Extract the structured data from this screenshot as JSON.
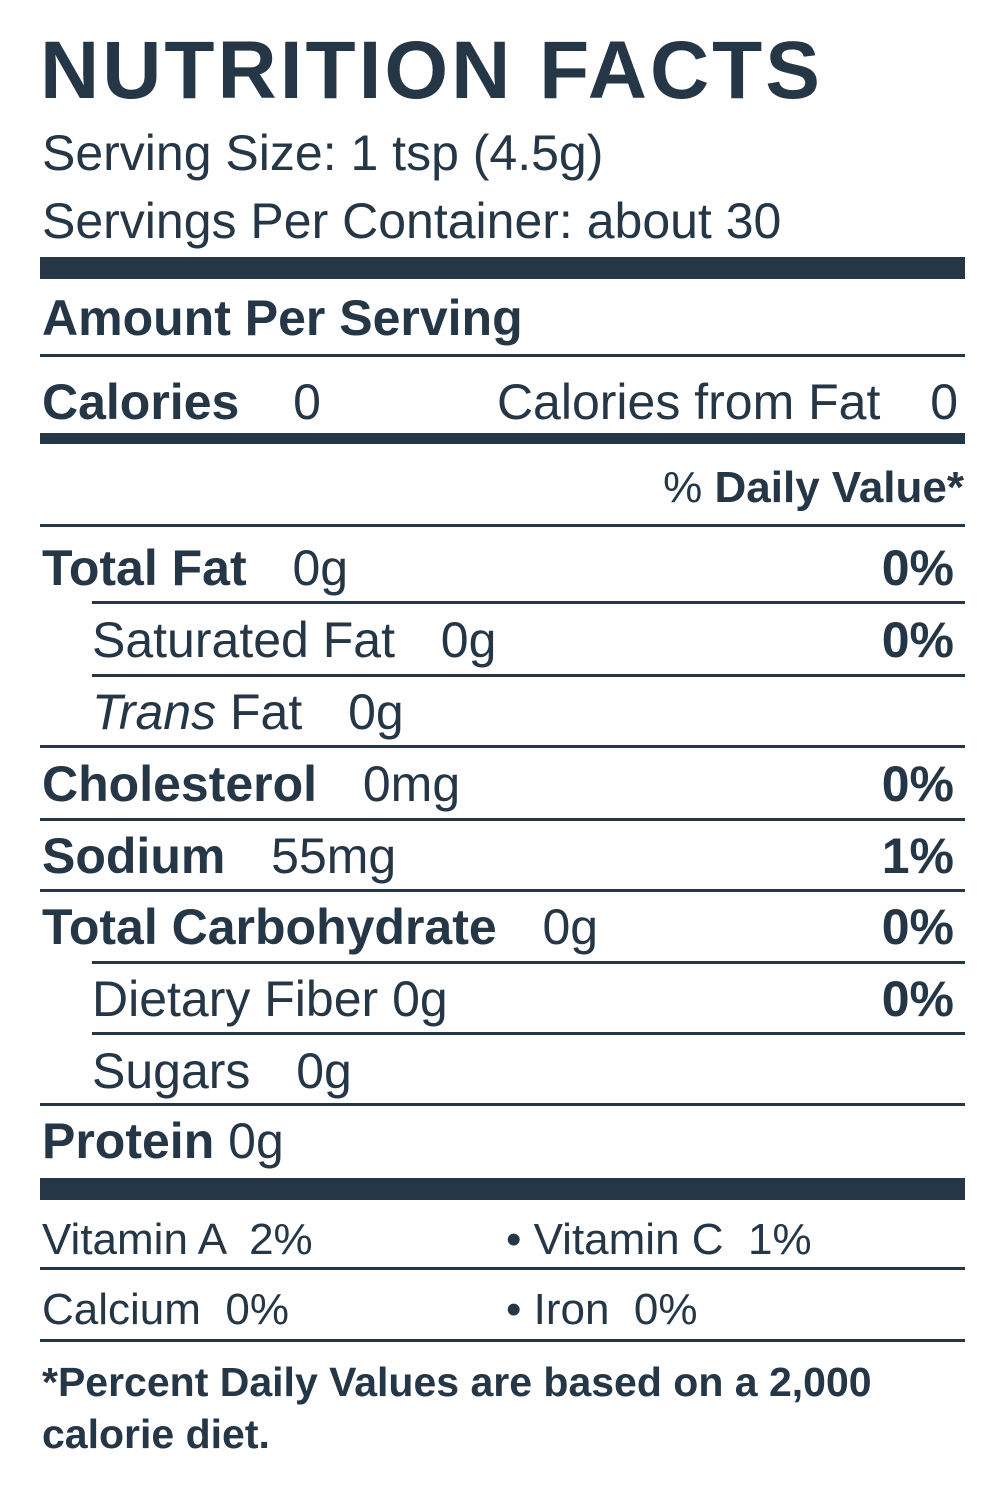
{
  "title": "NUTRITION FACTS",
  "serving_size": "Serving Size: 1 tsp (4.5g)",
  "servings_per_container": "Servings Per Container: about 30",
  "amount_per_serving": "Amount Per Serving",
  "calories": {
    "label": "Calories",
    "value": "0"
  },
  "calories_from_fat": {
    "label": "Calories from Fat",
    "value": "0"
  },
  "daily_value_header": {
    "pct": "%",
    "label": "Daily Value*"
  },
  "nutrients": {
    "total_fat": {
      "label": "Total Fat",
      "amount": "0g",
      "dv": "0%"
    },
    "saturated_fat": {
      "label": "Saturated Fat",
      "amount": "0g",
      "dv": "0%"
    },
    "trans_fat": {
      "label_italic": "Trans",
      "label": "Fat",
      "amount": "0g"
    },
    "cholesterol": {
      "label": "Cholesterol",
      "amount": "0mg",
      "dv": "0%"
    },
    "sodium": {
      "label": "Sodium",
      "amount": "55mg",
      "dv": "1%"
    },
    "total_carbohydrate": {
      "label": "Total Carbohydrate",
      "amount": "0g",
      "dv": "0%"
    },
    "dietary_fiber": {
      "label": "Dietary Fiber",
      "amount": "0g",
      "dv": "0%"
    },
    "sugars": {
      "label": "Sugars",
      "amount": "0g"
    },
    "protein": {
      "label": "Protein",
      "amount": "0g"
    }
  },
  "vitamins": {
    "vitamin_a": "Vitamin A  2%",
    "vitamin_c": "• Vitamin C  1%",
    "calcium": "Calcium  0%",
    "iron": "• Iron  0%"
  },
  "footnote": "*Percent Daily Values are based on a 2,000 calorie diet.",
  "colors": {
    "ink": "#253746",
    "background": "#ffffff"
  }
}
